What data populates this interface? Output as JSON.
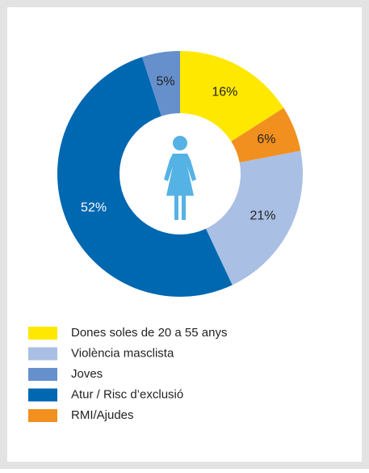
{
  "chart_data": {
    "type": "donut",
    "categories": [
      "Dones soles de 20 a 55 anys",
      "Violència masclista",
      "Joves",
      "Atur / Risc d’exclusió",
      "RMI/Ajudes"
    ],
    "values": [
      16,
      21,
      5,
      52,
      6
    ],
    "value_labels": [
      "16%",
      "21%",
      "5%",
      "52%",
      "6%"
    ],
    "colors": [
      "#ffe800",
      "#a9bfe4",
      "#6690cc",
      "#0067b1",
      "#f2901f"
    ],
    "slice_order": [
      0,
      4,
      1,
      3,
      2
    ],
    "legend": "bottom-left"
  }
}
